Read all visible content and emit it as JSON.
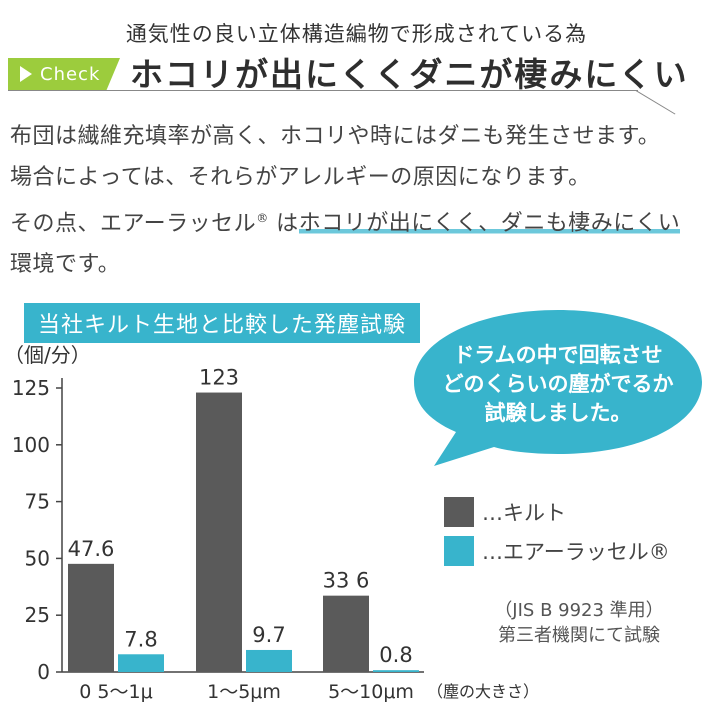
{
  "header": {
    "subtitle": "通気性の良い立体構造編物で形成されている為",
    "badge": "Check",
    "headline": "ホコリが出にくくダニが棲みにくい"
  },
  "body": {
    "line1": "布団は繊維充填率が高く、ホコリや時にはダニも発生させます。",
    "line2": "場合によっては、それらがアレルギーの原因になります。",
    "line3_pre": "その点、エアーラッセル",
    "line3_reg": "®",
    "line3_mid": " は",
    "line3_hl": "ホコリが出にくく、ダニも棲みにくい",
    "line4": "環境です。"
  },
  "bubble": {
    "lines": [
      "ドラムの中で回転させ",
      "どのくらいの塵がでるか",
      "試験しました。"
    ],
    "color": "#38b4cc"
  },
  "legend": {
    "quilt_label": "…キルト",
    "air_label": "…エアーラッセル®"
  },
  "note": {
    "line1": "（JIS B 9923 準用）",
    "line2": "第三者機関にて試験"
  },
  "chart_data": {
    "type": "bar",
    "title": "当社キルト生地と比較した発塵試験",
    "ylabel": "（個/分）",
    "xlabel": "（塵の大きさ）",
    "ylim": [
      0,
      125
    ],
    "yticks": [
      0,
      25,
      50,
      75,
      100,
      125
    ],
    "categories": [
      "0 5〜1μ",
      "1〜5μm",
      "5〜10μm"
    ],
    "series": [
      {
        "name": "キルト",
        "color": "#5a5a5a",
        "values": [
          47.6,
          123,
          33.6
        ],
        "labels": [
          "47.6",
          "123",
          "33 6"
        ]
      },
      {
        "name": "エアーラッセル®",
        "color": "#38b4cc",
        "values": [
          7.8,
          9.7,
          0.8
        ],
        "labels": [
          "7.8",
          "9.7",
          "0.8"
        ]
      }
    ],
    "legend": "right",
    "grid": false
  }
}
